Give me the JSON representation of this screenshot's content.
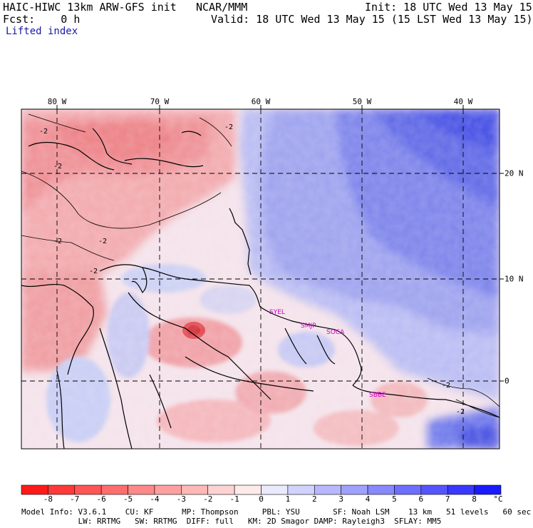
{
  "header": {
    "model": "HAIC-HIWC 13km ARW-GFS init",
    "org": "NCAR/MMM",
    "init": "Init: 18 UTC Wed 13 May 15",
    "fcst": "Fcst:    0 h",
    "valid": "Valid: 18 UTC Wed 13 May 15 (15 LST Wed 13 May 15)",
    "field": "Lifted index"
  },
  "axes": {
    "lon_labels": [
      "80 W",
      "70 W",
      "60 W",
      "50 W",
      "40 W"
    ],
    "lat_labels": [
      "20 N",
      "10 N",
      "0"
    ]
  },
  "contour_labels": [
    "-2",
    "-2",
    "-2",
    "-2",
    "-2",
    "-2",
    "-2",
    "-2"
  ],
  "stations": [
    "SYEL",
    "SMJP",
    "SOCA",
    "SBBE"
  ],
  "colorbar": {
    "labels": [
      "-8",
      "-7",
      "-6",
      "-5",
      "-4",
      "-3",
      "-2",
      "-1",
      "0",
      "1",
      "2",
      "3",
      "4",
      "5",
      "6",
      "7",
      "8",
      "°C"
    ],
    "colors": [
      "#ff1a1a",
      "#ff3838",
      "#ff5555",
      "#ff6e6e",
      "#ff8888",
      "#ffa0a0",
      "#ffb8b8",
      "#ffd2d2",
      "#ffeaea",
      "#eaeaff",
      "#d2d2ff",
      "#b8b8ff",
      "#a0a0ff",
      "#8888ff",
      "#6e6eff",
      "#5555ff",
      "#3838ff",
      "#1a1aff"
    ]
  },
  "model_info": {
    "line1": "Model Info: V3.6.1    CU: KF      MP: Thompson     PBL: YSU       SF: Noah LSM    13 km   51 levels   60 sec",
    "line2": "            LW: RRTMG   SW: RRTMG  DIFF: full   KM: 2D Smagor DAMP: Rayleigh3  SFLAY: MM5"
  }
}
